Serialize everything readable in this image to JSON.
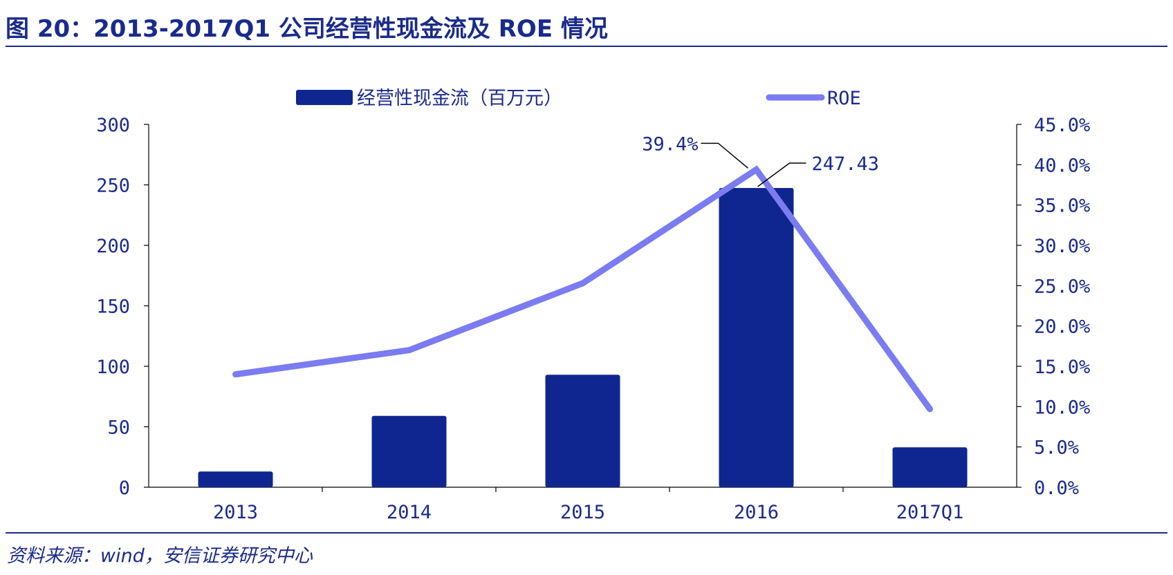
{
  "title": "图 20：2013-2017Q1 公司经营性现金流及 ROE 情况",
  "source": "资料来源：wind，安信证券研究中心",
  "chart_data": {
    "type": "bar+line",
    "categories": [
      "2013",
      "2014",
      "2015",
      "2016",
      "2017Q1"
    ],
    "series": [
      {
        "name": "经营性现金流（百万元）",
        "type": "bar",
        "axis": "left",
        "color": "#0f2690",
        "values": [
          13,
          59,
          93,
          247.43,
          33
        ]
      },
      {
        "name": "ROE",
        "type": "line",
        "axis": "right",
        "color": "#7b7bf2",
        "values": [
          14.0,
          17.0,
          25.3,
          39.4,
          9.7
        ]
      }
    ],
    "y_left": {
      "min": 0,
      "max": 300,
      "ticks": [
        "0",
        "50",
        "100",
        "150",
        "200",
        "250",
        "300"
      ]
    },
    "y_right": {
      "min": 0,
      "max": 45,
      "ticks": [
        "0.0%",
        "5.0%",
        "10.0%",
        "15.0%",
        "20.0%",
        "25.0%",
        "30.0%",
        "35.0%",
        "40.0%",
        "45.0%"
      ]
    },
    "annotations": [
      {
        "text": "39.4%",
        "series": "ROE",
        "category": "2016"
      },
      {
        "text": "247.43",
        "series": "经营性现金流（百万元）",
        "category": "2016"
      }
    ],
    "legend": "top-center",
    "grid": false,
    "text_color": "#1a2a8c"
  }
}
